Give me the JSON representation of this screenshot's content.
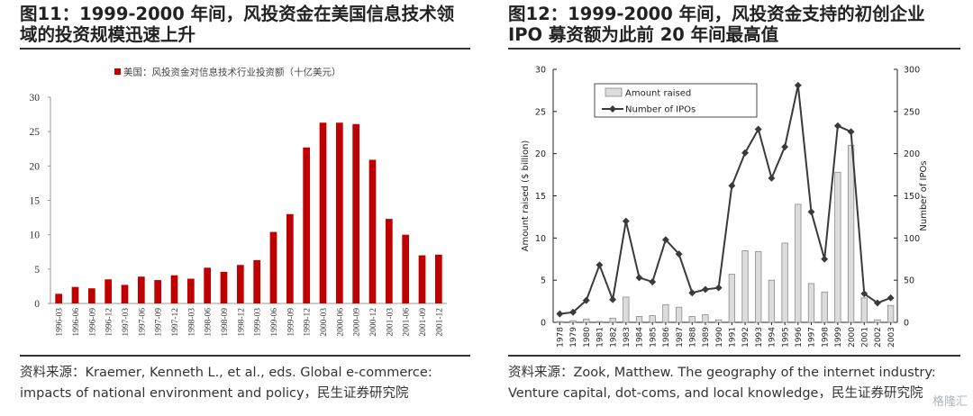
{
  "left": {
    "title": "图11：1999-2000 年间，风投资金在美国信息技术领\n域的投资规模迅速上升",
    "source": "资料来源：Kraemer, Kenneth L., et al., eds. Global e-commerce: impacts of national environment and policy，民生证券研究院",
    "colors": {
      "bar": "#c00000"
    }
  },
  "right": {
    "title": "图12：1999-2000 年间，风投资金支持的初创企业\nIPO 募资额为此前 20 年间最高值",
    "source": "资料来源：Zook, Matthew. The geography of the internet industry: Venture capital, dot-coms, and local knowledge，民生证券研究院",
    "colors": {
      "bar_fill": "#dcdcdc",
      "bar_stroke": "#8a8a8a",
      "line": "#3a3a3a"
    }
  },
  "watermark": "格隆汇",
  "chart_data": [
    {
      "type": "bar",
      "title": "",
      "legend": [
        "美国：风投资金对信息技术行业投资额（十亿美元）"
      ],
      "legend_position": "top",
      "categories": [
        "1996-03",
        "1996-06",
        "1996-09",
        "1996-12",
        "1997-03",
        "1997-06",
        "1997-09",
        "1997-12",
        "1998-03",
        "1998-06",
        "1998-09",
        "1998-12",
        "1999-03",
        "1999-06",
        "1999-09",
        "1999-12",
        "2000-03",
        "2000-06",
        "2000-09",
        "2000-12",
        "2001-03",
        "2001-06",
        "2001-09",
        "2001-12"
      ],
      "values": [
        1.4,
        2.4,
        2.2,
        3.5,
        2.7,
        3.9,
        3.4,
        4.1,
        3.6,
        5.2,
        4.6,
        5.6,
        6.3,
        10.4,
        13.0,
        22.7,
        26.3,
        26.3,
        26.1,
        20.9,
        12.3,
        10.0,
        7.0,
        7.1
      ],
      "ylim": [
        0,
        30
      ],
      "yticks": [
        "0",
        "5",
        "10",
        "15",
        "20",
        "25",
        "30"
      ],
      "xlabel": "",
      "ylabel": "",
      "grid": false
    },
    {
      "type": "bar+line",
      "title": "",
      "x": [
        "1978",
        "1979",
        "1980",
        "1981",
        "1982",
        "1983",
        "1984",
        "1985",
        "1986",
        "1987",
        "1988",
        "1989",
        "1990",
        "1991",
        "1992",
        "1993",
        "1994",
        "1995",
        "1996",
        "1997",
        "1998",
        "1999",
        "2000",
        "2001",
        "2002",
        "2003"
      ],
      "series": [
        {
          "name": "Amount raised",
          "type": "bar",
          "axis": "left",
          "values": [
            0.1,
            0.2,
            0.4,
            0.1,
            0.5,
            3.0,
            0.7,
            0.8,
            2.1,
            1.8,
            0.7,
            0.9,
            0.3,
            5.7,
            8.5,
            8.4,
            5.0,
            9.4,
            14.0,
            4.6,
            3.6,
            17.8,
            21.0,
            2.9,
            0.3,
            2.0
          ]
        },
        {
          "name": "Number of IPOs",
          "type": "line",
          "axis": "right",
          "values": [
            10,
            12,
            26,
            68,
            27,
            120,
            53,
            48,
            98,
            81,
            35,
            39,
            41,
            162,
            201,
            229,
            171,
            208,
            281,
            131,
            75,
            233,
            226,
            34,
            23,
            29
          ]
        }
      ],
      "ylabel_left": "Amount raised ($ billion)",
      "ylabel_right": "Number of IPOs",
      "ylim_left": [
        0,
        30
      ],
      "ylim_right": [
        0,
        300
      ],
      "yticks_left": [
        "0",
        "5",
        "10",
        "15",
        "20",
        "25",
        "30"
      ],
      "yticks_right": [
        "0",
        "50",
        "100",
        "150",
        "200",
        "250",
        "300"
      ],
      "legend_position": "top-left",
      "grid": false
    }
  ]
}
